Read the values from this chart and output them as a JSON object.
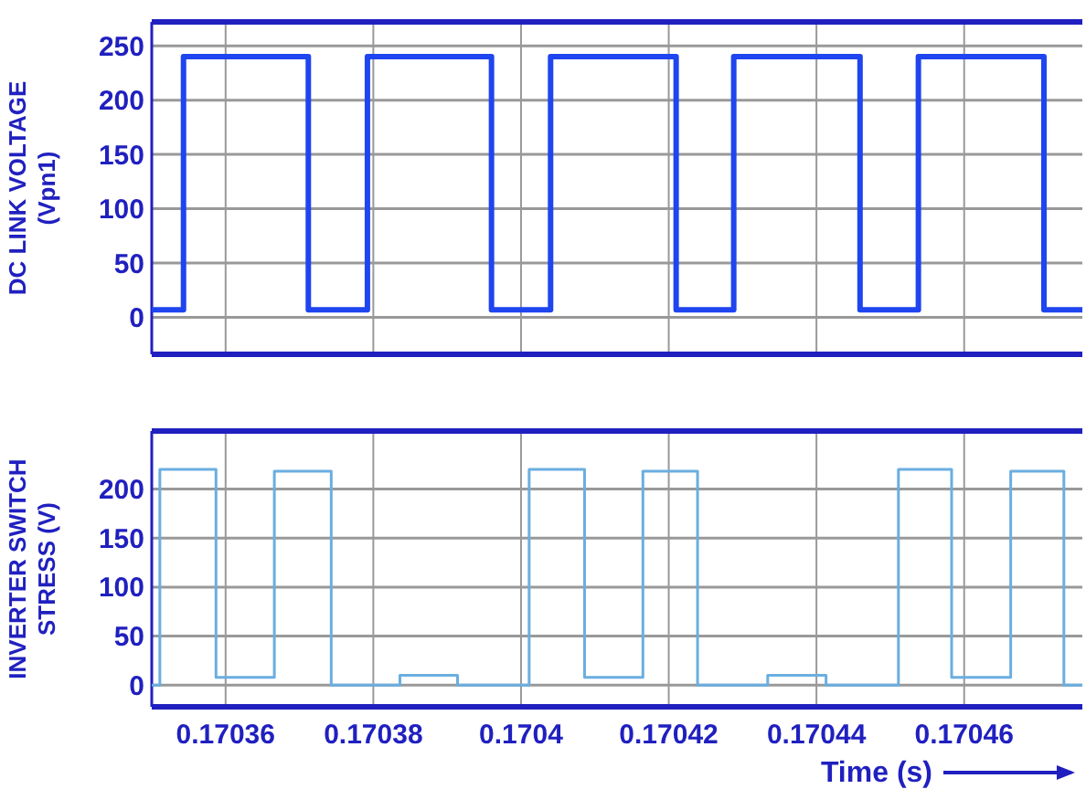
{
  "chart_data": [
    {
      "type": "step",
      "ylabel": "DC LINK VOLTAGE\n(Vpn1)",
      "xlim": [
        0.17035,
        0.170476
      ],
      "xticks": [
        0.17036,
        0.17038,
        0.1704,
        0.17042,
        0.17044,
        0.17046
      ],
      "ylim": [
        -34,
        272
      ],
      "yticks": [
        0,
        50,
        100,
        150,
        200,
        250
      ],
      "grid": true,
      "tick_labels": "y",
      "series": [
        {
          "color": "#1f45f0",
          "x": [
            0.17035,
            0.1703543,
            0.1703712,
            0.1703792,
            0.170396,
            0.170404,
            0.170421,
            0.1704288,
            0.1704459,
            0.1704538,
            0.1704708,
            0.170476
          ],
          "values": [
            7,
            240,
            7,
            240,
            7,
            240,
            7,
            240,
            7,
            240,
            7,
            7
          ]
        }
      ]
    },
    {
      "type": "step",
      "ylabel": "INVERTER SWITCH\nSTRESS (V)",
      "xlabel": "Time (s)",
      "xlim": [
        0.17035,
        0.170476
      ],
      "xticks": [
        0.17036,
        0.17038,
        0.1704,
        0.17042,
        0.17044,
        0.17046
      ],
      "ylim": [
        -22,
        259
      ],
      "yticks": [
        0,
        50,
        100,
        150,
        200
      ],
      "grid": true,
      "series": [
        {
          "color": "#6aaee0",
          "x": [
            0.17035,
            0.1703511,
            0.1703587,
            0.1703666,
            0.1703743,
            0.1703836,
            0.1703914,
            0.1704011,
            0.1704086,
            0.1704165,
            0.1704239,
            0.1704334,
            0.1704413,
            0.1704511,
            0.1704583,
            0.1704663,
            0.1704735,
            0.170476
          ],
          "values": [
            0,
            220,
            8,
            218,
            0,
            10,
            0,
            220,
            8,
            218,
            0,
            10,
            0,
            220,
            8,
            218,
            0,
            0
          ]
        }
      ]
    }
  ]
}
